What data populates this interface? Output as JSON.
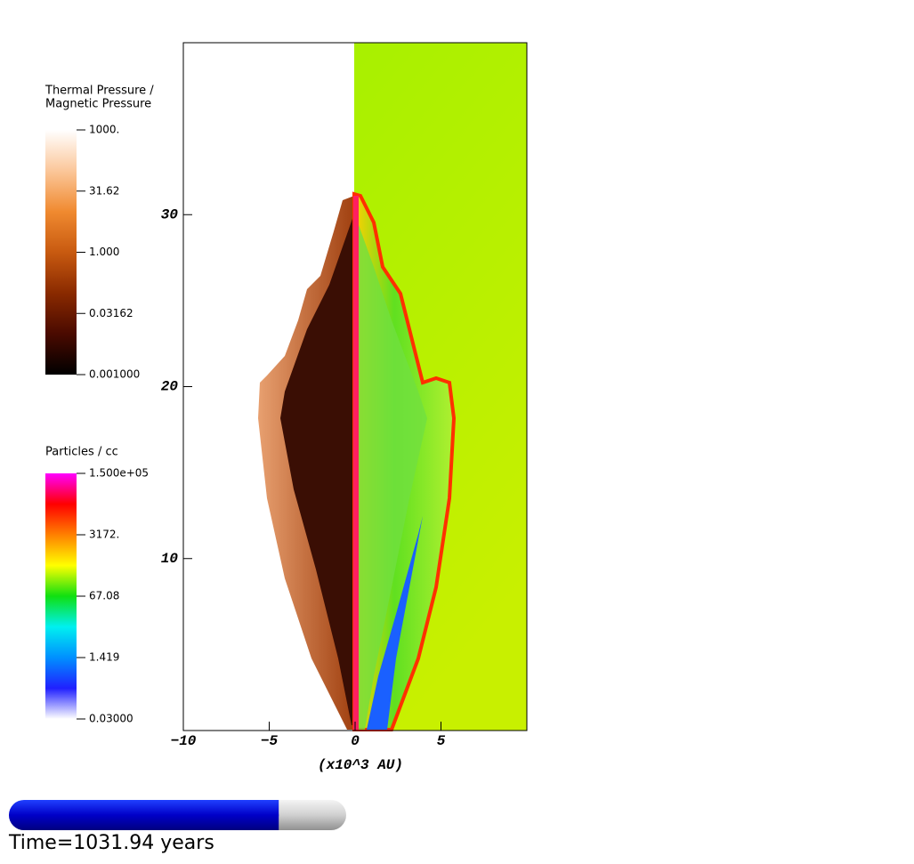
{
  "chart_data": {
    "type": "pseudocolor",
    "xlabel": "(x10^3 AU)",
    "xlim": [
      -10,
      10
    ],
    "xticks": [
      {
        "value": -10,
        "label": "−10"
      },
      {
        "value": -5,
        "label": "−5"
      },
      0,
      5
    ],
    "ylim": [
      0,
      40
    ],
    "yticks": [
      10,
      20,
      30
    ],
    "colorbars": [
      {
        "title": [
          "Thermal Pressure /",
          "Magnetic Pressure"
        ],
        "log": true,
        "lim": [
          0.001,
          1000
        ],
        "colors": [
          "#000000",
          "#4a0a00",
          "#8a2a00",
          "#c85a10",
          "#f08a30",
          "#fbc79a",
          "#ffffff"
        ],
        "ticks": [
          {
            "value": 1000,
            "label": "1000."
          },
          {
            "value": 31.62,
            "label": "31.62"
          },
          {
            "value": 1,
            "label": "1.000"
          },
          {
            "value": 0.03162,
            "label": "0.03162"
          },
          {
            "value": 0.001,
            "label": "0.001000"
          }
        ]
      },
      {
        "title": [
          "Particles / cc"
        ],
        "log": true,
        "lim": [
          0.03,
          150000
        ],
        "colors": [
          "#ffffff",
          "#2020ff",
          "#0090ff",
          "#00f0f0",
          "#10e010",
          "#ffff00",
          "#ff8000",
          "#ff0000",
          "#ff00ff"
        ],
        "ticks": [
          {
            "value": 150000,
            "label": "1.500e+05"
          },
          {
            "value": 3172,
            "label": "3172."
          },
          67.08,
          1.419,
          {
            "value": 0.03,
            "label": "0.03000"
          }
        ]
      }
    ],
    "time_label": "Time=1031.94 years",
    "progress": 0.8
  }
}
